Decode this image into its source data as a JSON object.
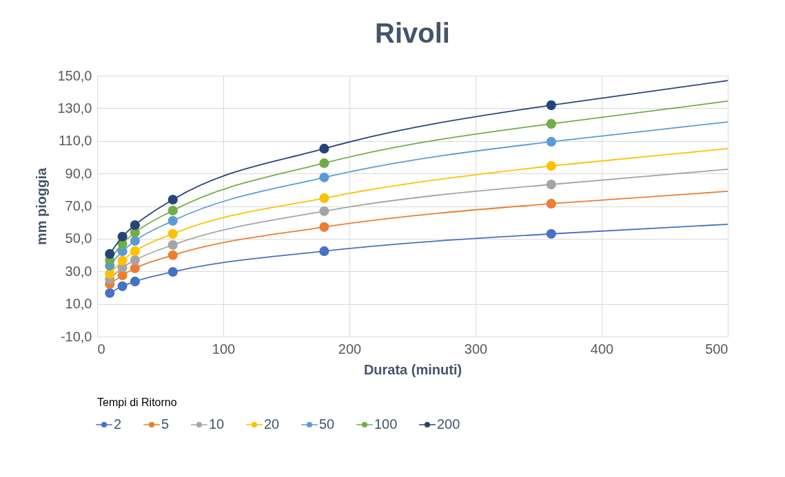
{
  "chart_data": {
    "type": "line",
    "title": "Rivoli",
    "xlabel": "Durata (minuti)",
    "ylabel": "mm pioggia",
    "legend_title": "Tempi di Ritorno",
    "legend": "bottom",
    "grid": true,
    "marker": "circle",
    "xlim": [
      0,
      500
    ],
    "xticks": [
      0,
      100,
      200,
      300,
      400,
      500
    ],
    "ylim": [
      -10,
      150
    ],
    "yticks": [
      {
        "value": -10,
        "label": "-10,0"
      },
      {
        "value": 10,
        "label": "10,0"
      },
      {
        "value": 30,
        "label": "30,0"
      },
      {
        "value": 50,
        "label": "50,0"
      },
      {
        "value": 70,
        "label": "70,0"
      },
      {
        "value": 90,
        "label": "90,0"
      },
      {
        "value": 110,
        "label": "110,0"
      },
      {
        "value": 130,
        "label": "130,0"
      },
      {
        "value": 150,
        "label": "150,0"
      }
    ],
    "series": [
      {
        "name": "2",
        "color": "#4472c4",
        "x": [
          10,
          20,
          30,
          60,
          180,
          360
        ],
        "values": [
          16.7,
          20.9,
          23.8,
          29.7,
          42.4,
          53.0
        ]
      },
      {
        "name": "5",
        "color": "#ed7d31",
        "x": [
          10,
          20,
          30,
          60,
          180,
          360
        ],
        "values": [
          22.2,
          27.6,
          31.9,
          39.9,
          57.2,
          71.5
        ]
      },
      {
        "name": "10",
        "color": "#a5a5a5",
        "x": [
          10,
          20,
          30,
          60,
          180,
          360
        ],
        "values": [
          25.1,
          32.3,
          36.9,
          46.2,
          66.9,
          83.3
        ]
      },
      {
        "name": "20",
        "color": "#ffc000",
        "x": [
          10,
          20,
          30,
          60,
          180,
          360
        ],
        "values": [
          28.5,
          36.5,
          42.4,
          53.0,
          74.9,
          94.7
        ]
      },
      {
        "name": "50",
        "color": "#5b9bd5",
        "x": [
          10,
          20,
          30,
          60,
          180,
          360
        ],
        "values": [
          33.5,
          42.4,
          48.7,
          61.0,
          87.6,
          109.5
        ]
      },
      {
        "name": "100",
        "color": "#70ad47",
        "x": [
          10,
          20,
          30,
          60,
          180,
          360
        ],
        "values": [
          36.9,
          47.0,
          53.8,
          67.3,
          96.4,
          120.5
        ]
      },
      {
        "name": "200",
        "color": "#264478",
        "x": [
          10,
          20,
          30,
          60,
          180,
          360
        ],
        "values": [
          40.7,
          51.3,
          58.4,
          74.0,
          105.3,
          131.9
        ]
      },
      {
        "marker": "none",
        "color": "#4472c4",
        "x": [
          360,
          500
        ],
        "values": [
          53.0,
          58.9
        ]
      },
      {
        "marker": "none",
        "color": "#ed7d31",
        "x": [
          360,
          500
        ],
        "values": [
          71.5,
          79.1
        ]
      },
      {
        "marker": "none",
        "color": "#a5a5a5",
        "x": [
          360,
          500
        ],
        "values": [
          83.3,
          92.6
        ]
      },
      {
        "marker": "none",
        "color": "#ffc000",
        "x": [
          360,
          500
        ],
        "values": [
          94.7,
          105.3
        ]
      },
      {
        "marker": "none",
        "color": "#5b9bd5",
        "x": [
          360,
          500
        ],
        "values": [
          109.5,
          121.7
        ]
      },
      {
        "marker": "none",
        "color": "#70ad47",
        "x": [
          360,
          500
        ],
        "values": [
          120.5,
          134.4
        ]
      },
      {
        "marker": "none",
        "color": "#264478",
        "x": [
          360,
          500
        ],
        "values": [
          131.9,
          147.0
        ]
      }
    ]
  }
}
